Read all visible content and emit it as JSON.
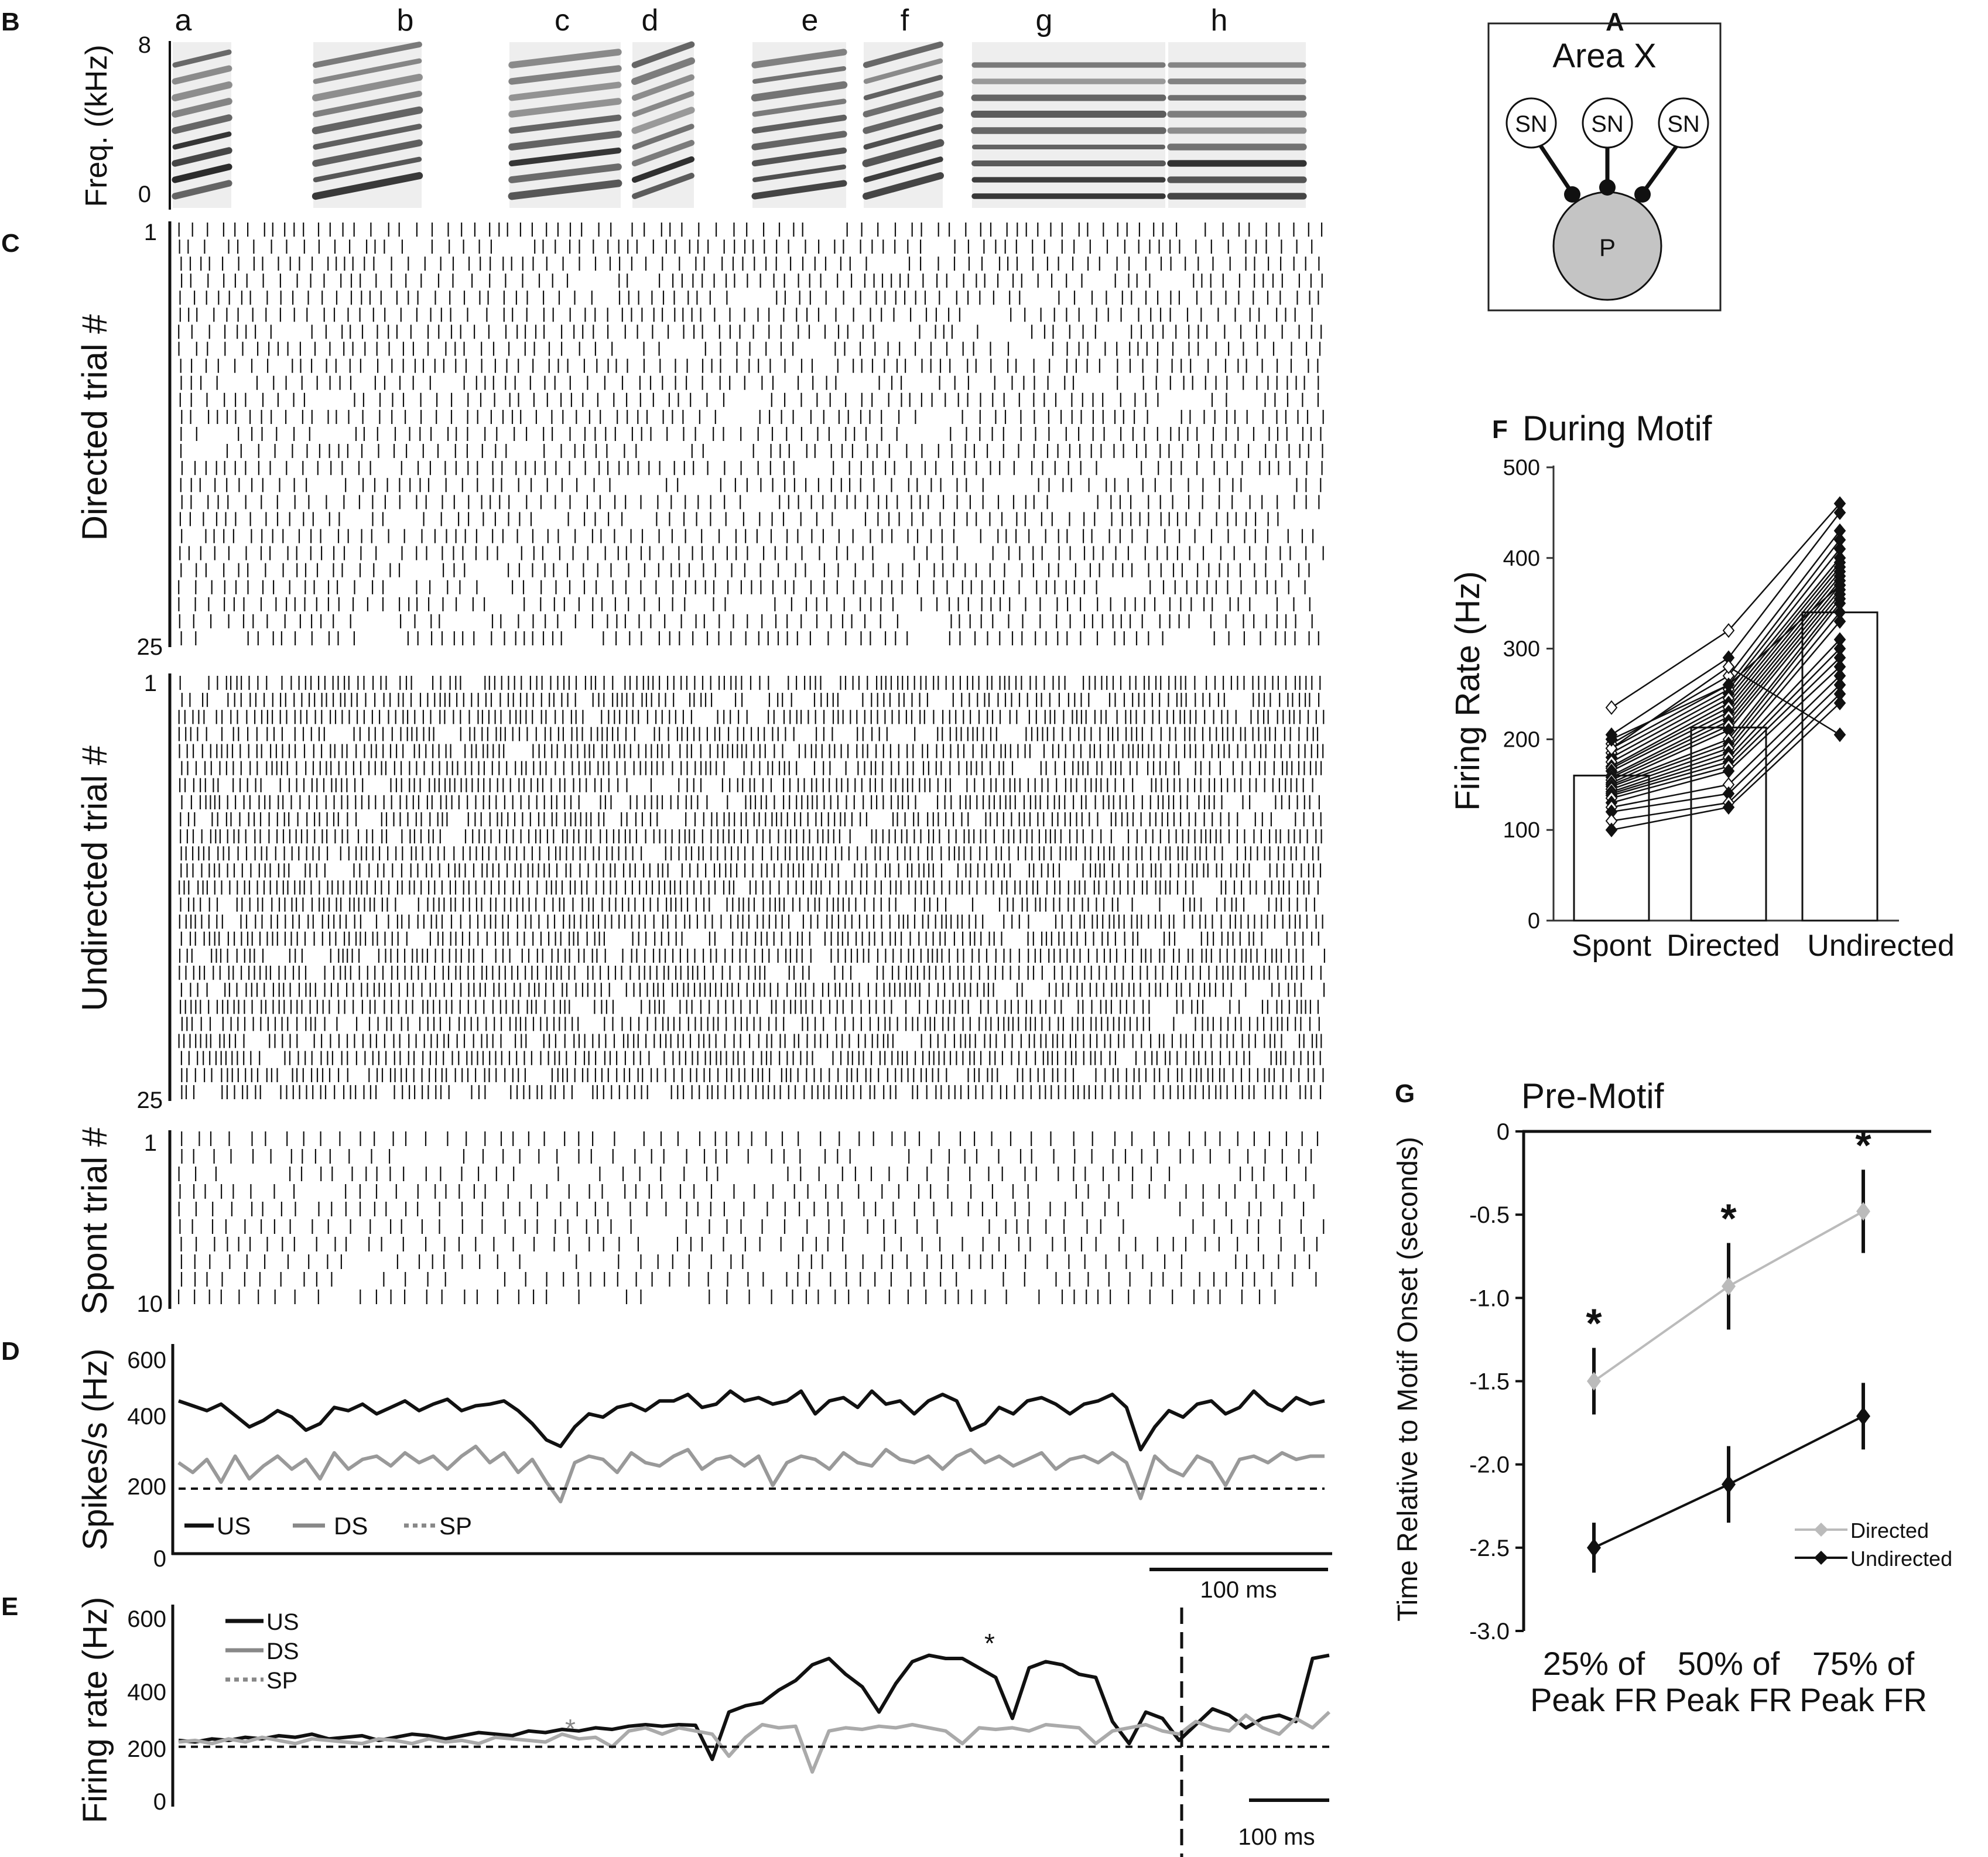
{
  "panels": {
    "A": "A",
    "B": "B",
    "C": "C",
    "D": "D",
    "E": "E",
    "F": "F",
    "G": "G"
  },
  "panelA": {
    "title": "Area X",
    "sn_labels": [
      "SN",
      "SN",
      "SN"
    ],
    "p_label": "P"
  },
  "panelB": {
    "ylabel": "Freq. ((kHz)",
    "ytick_top": "8",
    "ytick_bottom": "0",
    "syllables": [
      "a",
      "b",
      "c",
      "d",
      "e",
      "f",
      "g",
      "h"
    ]
  },
  "panelC": {
    "directed": {
      "label": "Directed trial #",
      "first": "1",
      "last": "25",
      "trials": 25,
      "density": 0.55
    },
    "undirected": {
      "label": "Undirected trial #",
      "first": "1",
      "last": "25",
      "trials": 25,
      "density": 0.85
    },
    "spont": {
      "label": "Spont trial #",
      "first": "1",
      "last": "10",
      "trials": 10,
      "density": 0.35
    }
  },
  "chart_data": [
    {
      "type": "line",
      "panel": "D",
      "ylabel": "Spikes/s (Hz)",
      "ylim": [
        0,
        600
      ],
      "yticks": [
        "0",
        "200",
        "400",
        "600"
      ],
      "scalebar": "100 ms",
      "series": [
        {
          "name": "US",
          "color": "#111111",
          "style": "solid",
          "values": [
            470,
            455,
            440,
            460,
            425,
            390,
            410,
            440,
            420,
            380,
            400,
            450,
            440,
            460,
            430,
            450,
            470,
            440,
            460,
            475,
            440,
            455,
            460,
            470,
            440,
            400,
            350,
            330,
            390,
            430,
            420,
            450,
            460,
            440,
            470,
            470,
            490,
            450,
            460,
            500,
            470,
            480,
            460,
            470,
            500,
            430,
            470,
            480,
            450,
            500,
            460,
            470,
            430,
            470,
            490,
            470,
            380,
            400,
            450,
            430,
            470,
            480,
            460,
            430,
            460,
            470,
            490,
            450,
            320,
            390,
            440,
            420,
            460,
            470,
            430,
            450,
            500,
            460,
            440,
            480,
            460,
            470
          ]
        },
        {
          "name": "DS",
          "color": "#999999",
          "style": "solid",
          "values": [
            280,
            250,
            290,
            220,
            300,
            230,
            270,
            300,
            260,
            290,
            230,
            310,
            260,
            290,
            300,
            270,
            310,
            280,
            300,
            260,
            300,
            330,
            280,
            310,
            250,
            290,
            220,
            160,
            280,
            300,
            290,
            250,
            310,
            280,
            270,
            300,
            320,
            260,
            290,
            300,
            270,
            300,
            210,
            280,
            300,
            290,
            260,
            310,
            280,
            270,
            320,
            290,
            280,
            300,
            260,
            300,
            320,
            280,
            300,
            270,
            290,
            310,
            260,
            290,
            300,
            280,
            310,
            280,
            170,
            300,
            260,
            240,
            300,
            280,
            210,
            290,
            300,
            280,
            310,
            290,
            300,
            300
          ]
        },
        {
          "name": "SP",
          "color": "#111111",
          "style": "dashed",
          "values": [
            200,
            200
          ]
        }
      ]
    },
    {
      "type": "line",
      "panel": "E",
      "ylabel": "Firing rate (Hz)",
      "ylim": [
        0,
        600
      ],
      "yticks": [
        "0",
        "200",
        "400",
        "600"
      ],
      "scalebar": "100 ms",
      "annotations": [
        "*",
        "*"
      ],
      "series": [
        {
          "name": "US",
          "color": "#111111",
          "style": "solid",
          "values": [
            210,
            205,
            215,
            210,
            220,
            215,
            225,
            220,
            230,
            215,
            220,
            225,
            210,
            220,
            230,
            225,
            215,
            225,
            235,
            230,
            225,
            240,
            235,
            245,
            240,
            250,
            245,
            255,
            260,
            255,
            260,
            258,
            150,
            300,
            320,
            330,
            370,
            400,
            450,
            470,
            420,
            380,
            300,
            390,
            460,
            480,
            470,
            470,
            440,
            410,
            280,
            440,
            460,
            450,
            420,
            410,
            270,
            200,
            300,
            280,
            210,
            260,
            310,
            290,
            250,
            280,
            290,
            270,
            470,
            480
          ]
        },
        {
          "name": "DS",
          "color": "#aaaaaa",
          "style": "solid",
          "values": [
            205,
            210,
            200,
            215,
            205,
            220,
            210,
            200,
            215,
            210,
            205,
            200,
            215,
            210,
            200,
            215,
            205,
            210,
            200,
            220,
            215,
            210,
            205,
            230,
            215,
            220,
            190,
            240,
            250,
            230,
            250,
            240,
            230,
            160,
            220,
            260,
            250,
            255,
            110,
            240,
            250,
            245,
            255,
            250,
            260,
            250,
            240,
            200,
            250,
            245,
            250,
            240,
            260,
            255,
            250,
            200,
            240,
            250,
            260,
            240,
            230,
            270,
            250,
            240,
            290,
            250,
            230,
            280,
            250,
            300
          ]
        },
        {
          "name": "SP",
          "color": "#111111",
          "style": "dashed",
          "values": [
            190,
            190
          ]
        }
      ]
    },
    {
      "type": "bar",
      "panel": "F",
      "title": "During Motif",
      "ylabel": "Firing Rate (Hz)",
      "ylim": [
        0,
        500
      ],
      "yticks": [
        "0",
        "100",
        "200",
        "300",
        "400",
        "500"
      ],
      "categories": [
        "Spont",
        "Directed",
        "Undirected"
      ],
      "values": [
        160,
        213,
        340
      ],
      "paired_points": {
        "spont": [
          235,
          205,
          195,
          190,
          185,
          180,
          175,
          170,
          168,
          165,
          160,
          158,
          155,
          152,
          150,
          148,
          145,
          142,
          140,
          138,
          135,
          130,
          125,
          120,
          110,
          100,
          190,
          200
        ],
        "directed": [
          320,
          290,
          270,
          260,
          255,
          250,
          245,
          240,
          235,
          230,
          225,
          220,
          215,
          210,
          200,
          195,
          190,
          185,
          180,
          175,
          170,
          165,
          150,
          140,
          130,
          125,
          280,
          260
        ],
        "undirected": [
          460,
          450,
          430,
          420,
          410,
          400,
          395,
          390,
          385,
          380,
          375,
          370,
          365,
          360,
          355,
          350,
          340,
          330,
          310,
          300,
          290,
          280,
          270,
          260,
          250,
          240,
          205,
          370
        ]
      }
    },
    {
      "type": "line",
      "panel": "G",
      "title": "Pre-Motif",
      "ylabel": "Time Relative to Motif Onset (seconds)",
      "ylim": [
        -3.0,
        0
      ],
      "yticks": [
        "0",
        "-0.5",
        "-1.0",
        "-1.5",
        "-2.0",
        "-2.5",
        "-3.0"
      ],
      "categories": [
        "25% of Peak FR",
        "50% of Peak FR",
        "75% of Peak FR"
      ],
      "category_lines": [
        [
          "25% of",
          "Peak FR"
        ],
        [
          "50% of",
          "Peak FR"
        ],
        [
          "75% of",
          "Peak FR"
        ]
      ],
      "significance": [
        "*",
        "*",
        "*"
      ],
      "series": [
        {
          "name": "Directed",
          "color": "#bbbbbb",
          "values": [
            -1.5,
            -0.93,
            -0.48
          ],
          "errors": [
            0.2,
            0.26,
            0.25
          ]
        },
        {
          "name": "Undirected",
          "color": "#111111",
          "values": [
            -2.5,
            -2.12,
            -1.71
          ],
          "errors": [
            0.15,
            0.23,
            0.2
          ]
        }
      ]
    }
  ]
}
